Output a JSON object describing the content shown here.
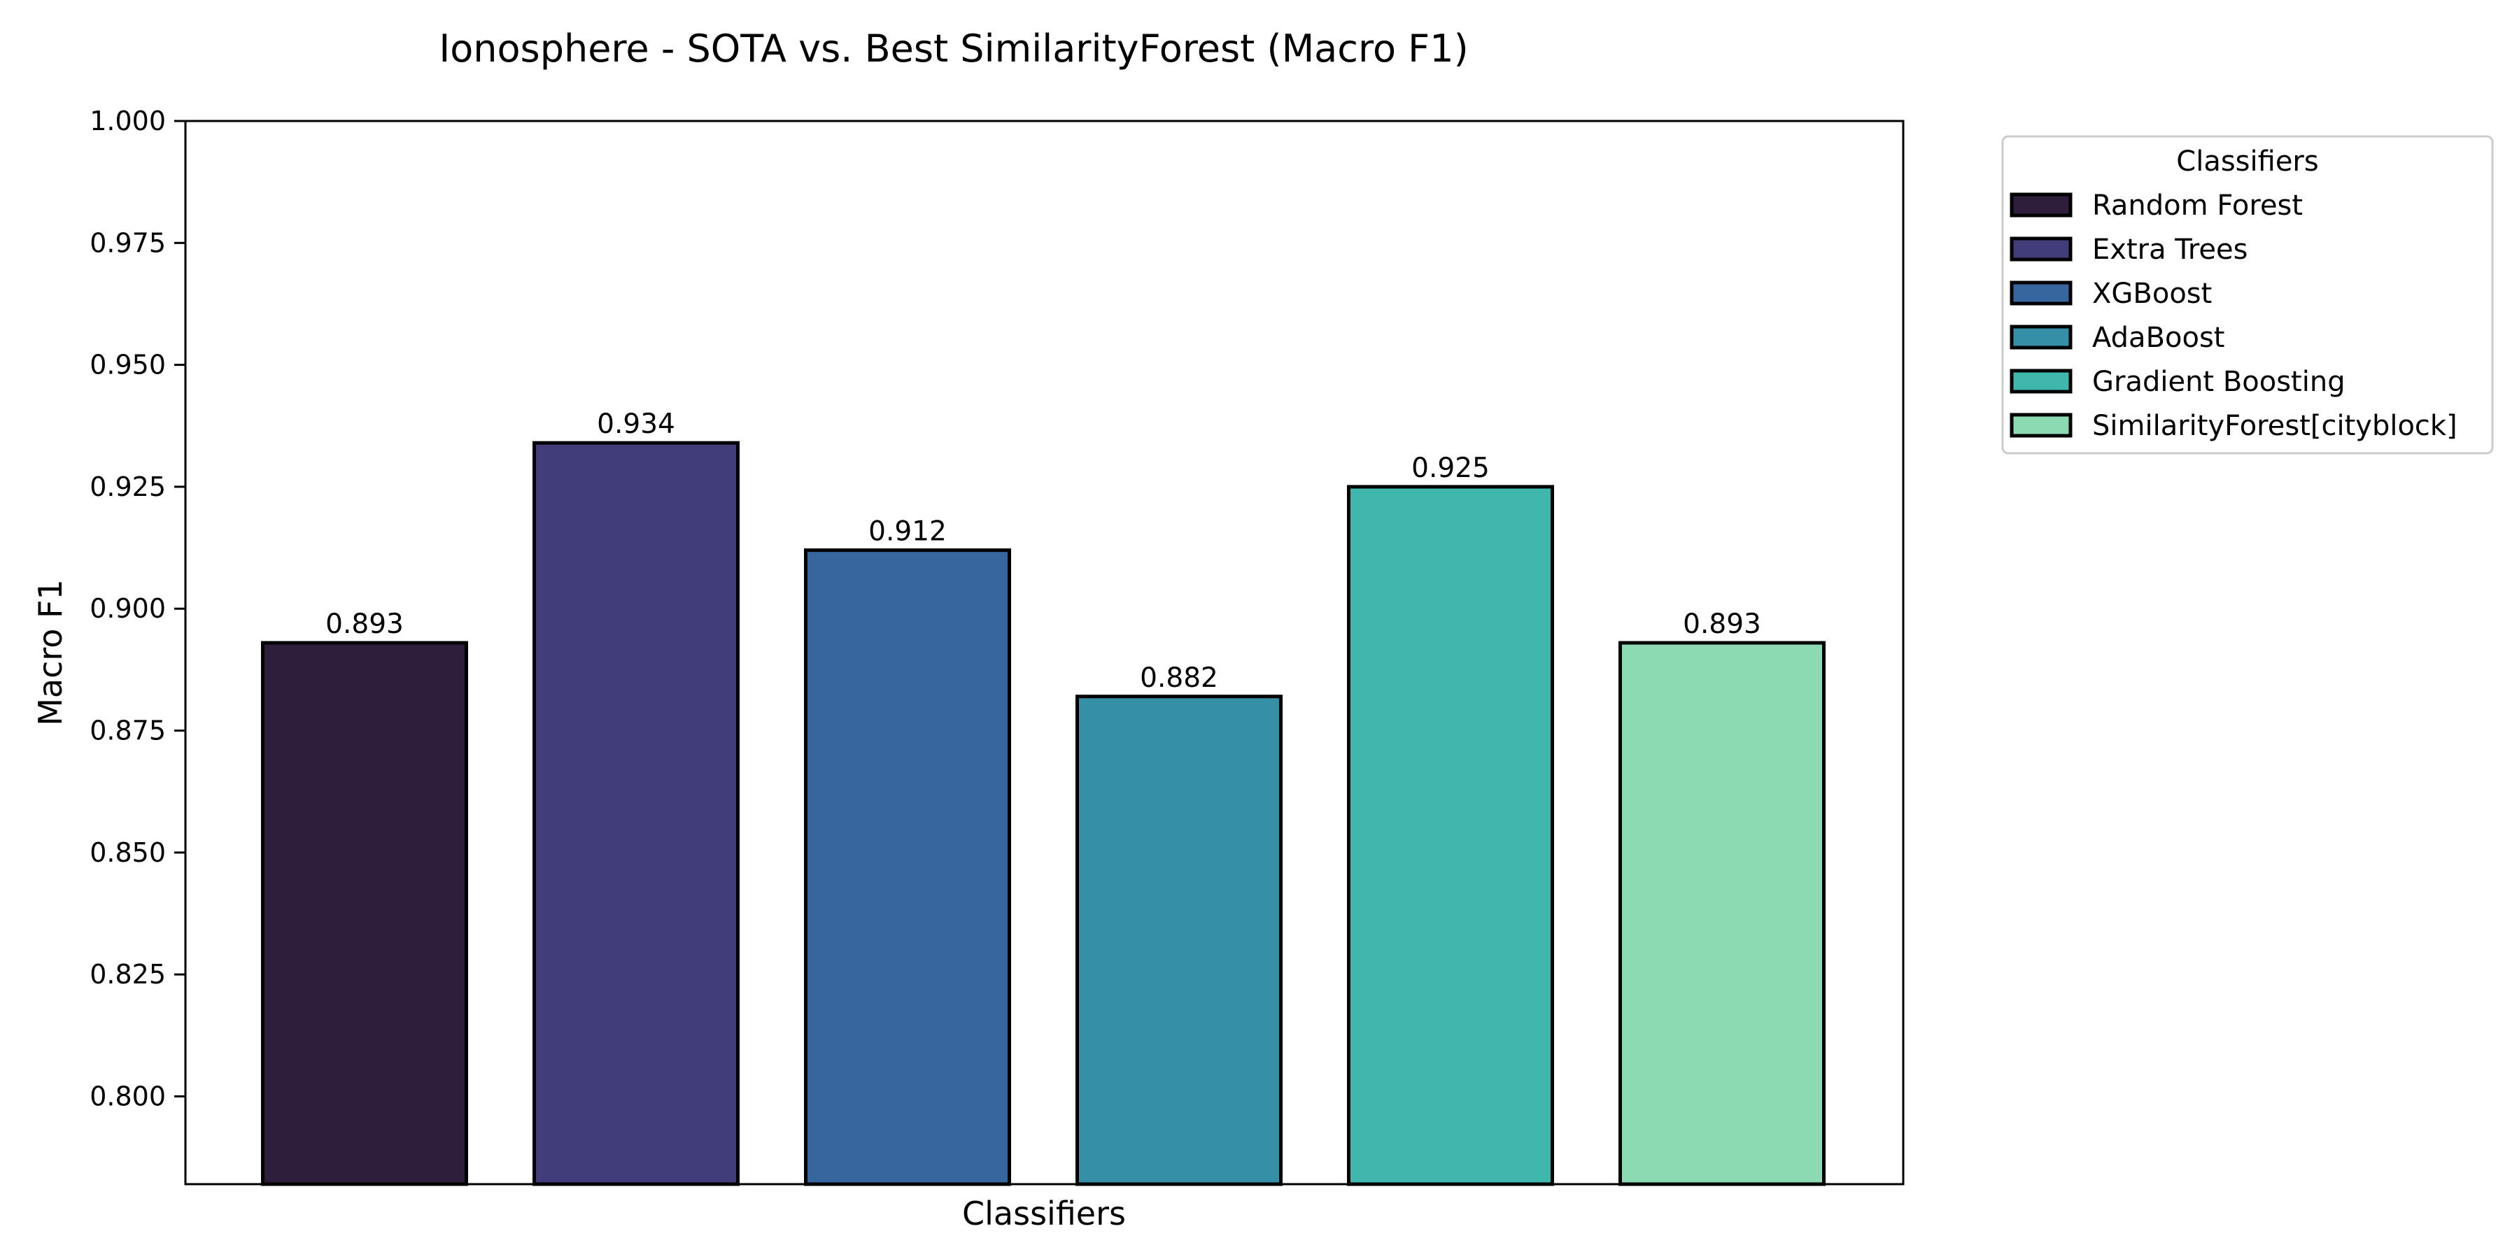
{
  "chart_data": {
    "type": "bar",
    "title": "Ionosphere - SOTA vs. Best SimilarityForest (Macro F1)",
    "xlabel": "Classifiers",
    "ylabel": "Macro F1",
    "ylim": [
      0.782,
      1.0
    ],
    "yticks": [
      "0.800",
      "0.825",
      "0.850",
      "0.875",
      "0.900",
      "0.925",
      "0.950",
      "0.975",
      "1.000"
    ],
    "grid": false,
    "legend": {
      "title": "Classifiers",
      "placement": "outside-top-right"
    },
    "categories": [
      "Random Forest",
      "Extra Trees",
      "XGBoost",
      "AdaBoost",
      "Gradient Boosting",
      "SimilarityForest[cityblock]"
    ],
    "values": [
      0.893,
      0.934,
      0.912,
      0.882,
      0.925,
      0.893
    ],
    "value_labels": [
      "0.893",
      "0.934",
      "0.912",
      "0.882",
      "0.925",
      "0.893"
    ],
    "colors": [
      "#2e1e3b",
      "#413d7b",
      "#37659e",
      "#348fa7",
      "#40b7ad",
      "#8bdab2"
    ]
  }
}
